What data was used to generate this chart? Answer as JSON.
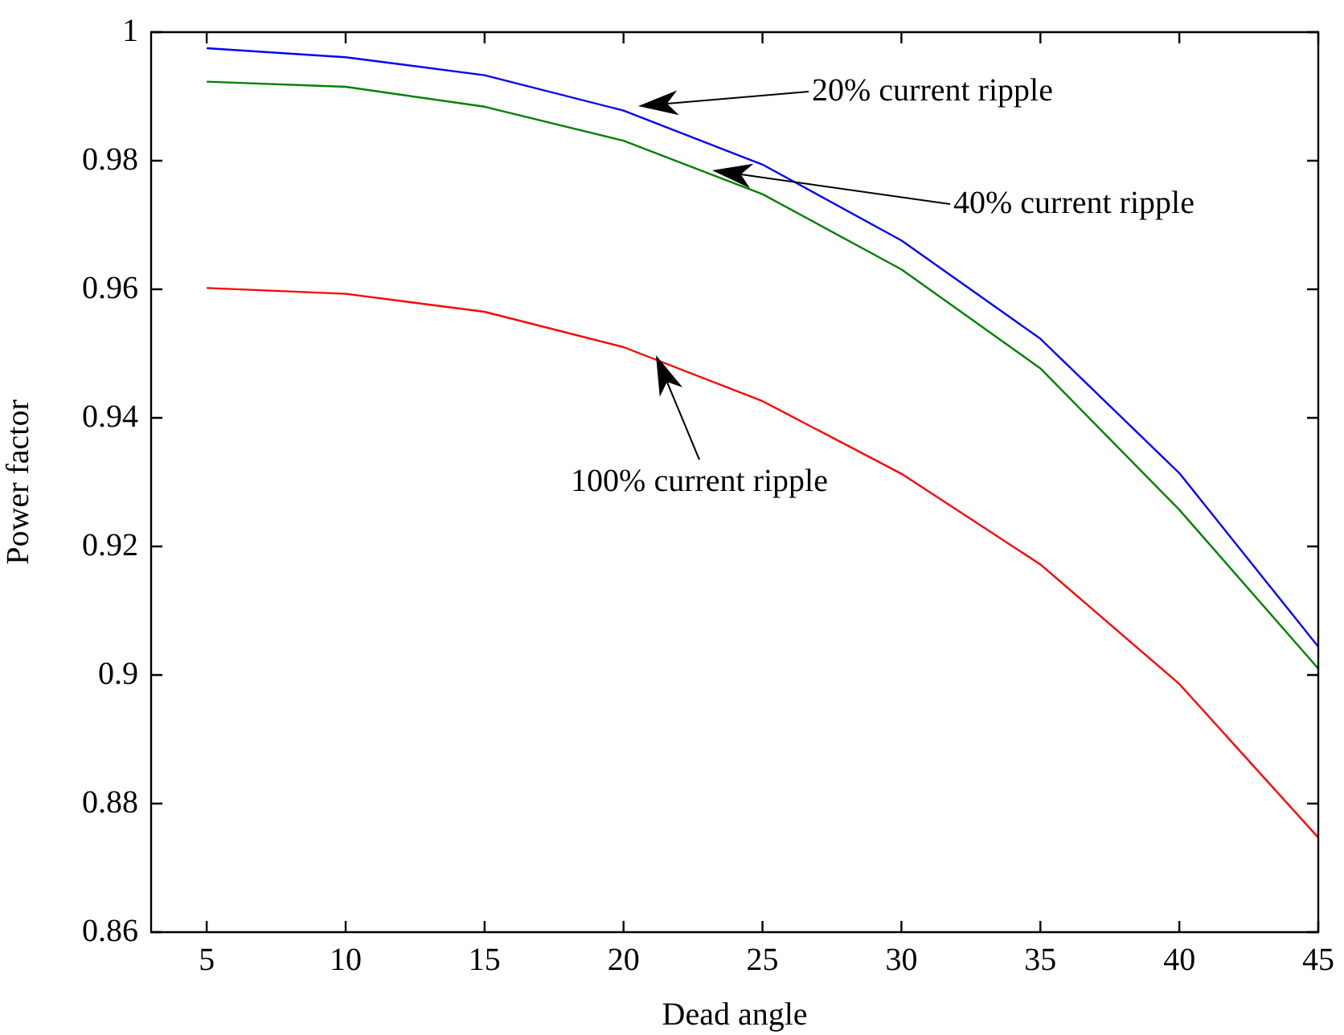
{
  "chart_data": {
    "type": "line",
    "xlabel": "Dead angle",
    "ylabel": "Power factor",
    "x": [
      5,
      10,
      15,
      20,
      25,
      30,
      35,
      40,
      45
    ],
    "series": [
      {
        "color": "#0000ff",
        "values": [
          0.9975,
          0.9961,
          0.9933,
          0.9878,
          0.9794,
          0.9676,
          0.9523,
          0.9314,
          0.9044
        ]
      },
      {
        "color": "#008000",
        "values": [
          0.9923,
          0.9915,
          0.9884,
          0.9831,
          0.9748,
          0.9631,
          0.9477,
          0.9257,
          0.901
        ]
      },
      {
        "color": "#ff0000",
        "values": [
          0.9602,
          0.9593,
          0.9565,
          0.951,
          0.9426,
          0.9313,
          0.9172,
          0.8986,
          0.8747
        ]
      }
    ],
    "xlim": [
      3,
      45
    ],
    "xticks": [
      5,
      10,
      15,
      20,
      25,
      30,
      35,
      40,
      45
    ],
    "ylim": [
      0.86,
      1
    ],
    "yticks": [
      0.86,
      0.88,
      0.9,
      0.92,
      0.94,
      0.96,
      0.98,
      1
    ],
    "annotations": [
      "20% current ripple",
      "40% current ripple",
      "100% current ripple"
    ],
    "grid": false,
    "legend": false,
    "marker": "none",
    "line_style": "solid"
  }
}
